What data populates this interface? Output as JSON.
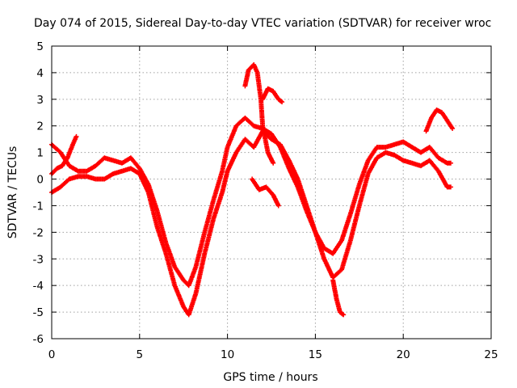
{
  "chart_data": {
    "type": "scatter",
    "title": "Day 074 of 2015, Sidereal Day-to-day VTEC variation (SDTVAR) for receiver wroc",
    "xlabel": "GPS time / hours",
    "ylabel": "SDTVAR / TECUs",
    "xlim": [
      0,
      25
    ],
    "ylim": [
      -6,
      5
    ],
    "xticks": [
      "0",
      "5",
      "10",
      "15",
      "20",
      "25"
    ],
    "yticks": [
      "-6",
      "-5",
      "-4",
      "-3",
      "-2",
      "-1",
      "0",
      "1",
      "2",
      "3",
      "4",
      "5"
    ],
    "grid": true,
    "marker": "+",
    "color": "#ff0000",
    "series": [
      {
        "x": [
          0.0,
          0.5,
          1.0,
          1.5,
          2.0,
          2.5,
          3.0,
          3.5,
          4.0,
          4.5,
          5.0,
          5.5,
          6.0,
          6.5,
          7.0,
          7.5,
          7.8,
          8.2,
          8.7,
          9.2,
          9.7,
          10.0,
          10.5,
          11.0,
          11.5,
          12.0,
          12.5,
          13.0,
          13.5,
          14.0,
          14.5,
          15.0,
          15.5,
          16.0,
          16.5,
          17.0,
          17.5,
          18.0,
          18.5,
          19.0,
          19.5,
          20.0,
          20.5,
          21.0,
          21.5,
          22.0,
          22.5,
          22.7
        ],
        "y": [
          -0.5,
          -0.3,
          0.0,
          0.1,
          0.1,
          0.0,
          0.0,
          0.2,
          0.3,
          0.4,
          0.2,
          -0.5,
          -1.8,
          -2.8,
          -4.0,
          -4.8,
          -5.1,
          -4.3,
          -2.8,
          -1.5,
          -0.5,
          0.3,
          1.0,
          1.5,
          1.2,
          1.8,
          1.5,
          1.3,
          0.7,
          0.0,
          -1.0,
          -2.0,
          -3.0,
          -3.7,
          -3.4,
          -2.3,
          -1.0,
          0.2,
          0.8,
          1.0,
          0.9,
          0.7,
          0.6,
          0.5,
          0.7,
          0.3,
          -0.3,
          -0.3
        ]
      },
      {
        "x": [
          0.0,
          0.5,
          1.0,
          1.5,
          2.0,
          2.5,
          3.0,
          3.5,
          4.0,
          4.5,
          5.0,
          5.5,
          6.0,
          6.5,
          7.0,
          7.5,
          7.8,
          8.2,
          8.7,
          9.2,
          9.7,
          10.0,
          10.5,
          11.0,
          11.5,
          12.0,
          12.5,
          13.0,
          13.5,
          14.0,
          14.5,
          15.0,
          15.5,
          16.0,
          16.5,
          17.0,
          17.5,
          18.0,
          18.5,
          19.0,
          19.5,
          20.0,
          20.5,
          21.0,
          21.5,
          22.0,
          22.5,
          22.7
        ],
        "y": [
          1.3,
          1.0,
          0.5,
          0.3,
          0.3,
          0.5,
          0.8,
          0.7,
          0.6,
          0.8,
          0.4,
          -0.2,
          -1.2,
          -2.4,
          -3.3,
          -3.8,
          -4.0,
          -3.3,
          -2.0,
          -0.8,
          0.3,
          1.2,
          2.0,
          2.3,
          2.0,
          1.9,
          1.7,
          1.2,
          0.4,
          -0.3,
          -1.2,
          -2.0,
          -2.6,
          -2.8,
          -2.3,
          -1.3,
          -0.2,
          0.7,
          1.2,
          1.2,
          1.3,
          1.4,
          1.2,
          1.0,
          1.2,
          0.8,
          0.6,
          0.6
        ]
      },
      {
        "x": [
          0.0,
          0.3,
          0.6,
          0.9,
          1.2,
          1.4
        ],
        "y": [
          0.2,
          0.4,
          0.5,
          0.8,
          1.3,
          1.6
        ]
      },
      {
        "x": [
          11.0,
          11.2,
          11.5,
          11.7,
          11.9,
          12.0,
          12.3,
          12.6
        ],
        "y": [
          3.5,
          4.1,
          4.3,
          4.0,
          3.0,
          2.0,
          1.0,
          0.6
        ]
      },
      {
        "x": [
          12.0,
          12.3,
          12.6,
          12.9,
          13.1
        ],
        "y": [
          3.0,
          3.4,
          3.3,
          3.0,
          2.9
        ]
      },
      {
        "x": [
          11.4,
          11.8,
          12.2,
          12.6,
          12.9
        ],
        "y": [
          0.0,
          -0.4,
          -0.3,
          -0.6,
          -1.0
        ]
      },
      {
        "x": [
          16.0,
          16.2,
          16.4,
          16.6
        ],
        "y": [
          -3.8,
          -4.5,
          -5.0,
          -5.1
        ]
      },
      {
        "x": [
          21.3,
          21.6,
          21.9,
          22.2,
          22.5,
          22.8
        ],
        "y": [
          1.8,
          2.3,
          2.6,
          2.5,
          2.2,
          1.9
        ]
      }
    ]
  }
}
